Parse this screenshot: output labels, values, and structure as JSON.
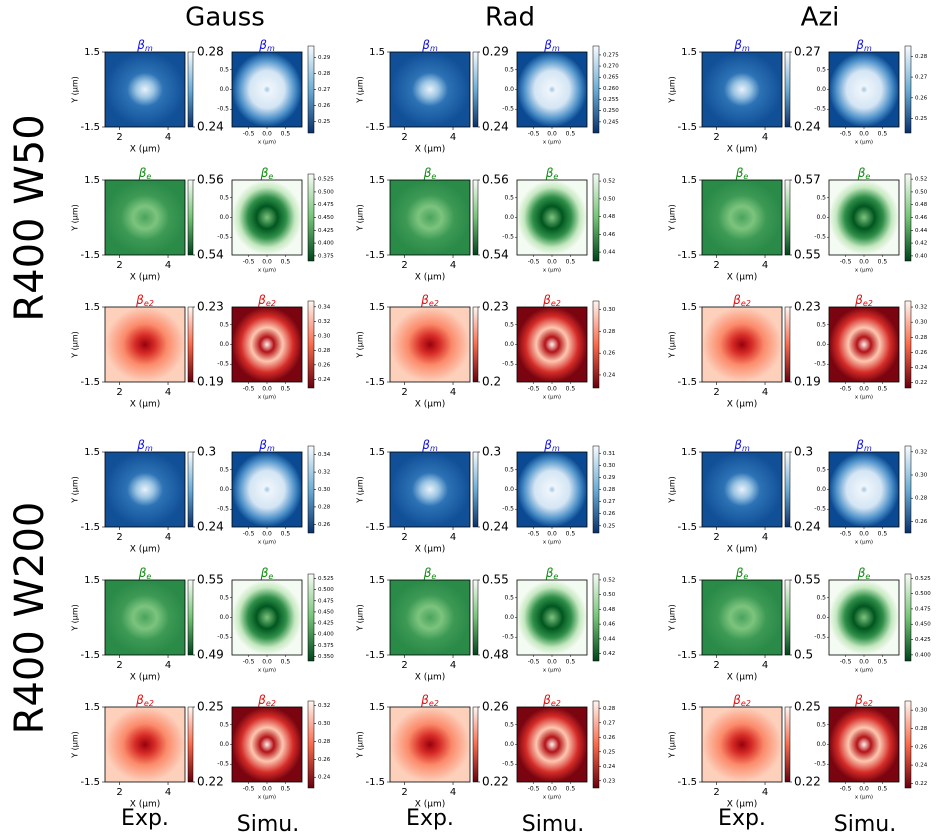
{
  "columns": [
    {
      "title": "Gauss",
      "exp_label": "Exp.",
      "simu_label": "Simu."
    },
    {
      "title": "Rad",
      "exp_label": "Exp.",
      "simu_label": "Simu."
    },
    {
      "title": "Azi",
      "exp_label": "Exp.",
      "simu_label": "Simu."
    }
  ],
  "exp_axes": {
    "xlabel": "X (µm)",
    "ylabel": "Y (µm)",
    "xlim": [
      1.4,
      4.7
    ],
    "xticks": [
      2,
      4
    ],
    "ylim": [
      -1.5,
      1.5
    ],
    "yticks": [
      1.5,
      -1.5
    ]
  },
  "simu_axes": {
    "xlabel": "x (µm)",
    "xlim": [
      -0.95,
      0.95
    ],
    "xticks": [
      -0.5,
      {
        "value": 0,
        "label": "0.0"
      },
      0.5
    ],
    "ylim": [
      -0.95,
      0.95
    ],
    "yticks": [
      0.5,
      {
        "value": 0,
        "label": "0.0"
      },
      -0.5
    ]
  },
  "rows": [
    {
      "symbol": "β",
      "sub": "m",
      "color": "#1010e0"
    },
    {
      "symbol": "β",
      "sub": "e",
      "color": "#108a10"
    },
    {
      "symbol": "β",
      "sub": "e2",
      "color": "#e01010"
    }
  ],
  "groups": [
    {
      "label": "R400 W50",
      "cells": [
        [
          {
            "exp": {
              "clim": [
                0.24,
                0.28
              ],
              "cticks": [
                0.28,
                0.24
              ]
            },
            "simu": {
              "clim": [
                0.243,
                0.297
              ],
              "cticks": [
                0.25,
                0.26,
                0.27,
                0.28,
                0.29
              ]
            }
          },
          {
            "exp": {
              "clim": [
                0.54,
                0.56
              ],
              "cticks": [
                0.56,
                0.54
              ]
            },
            "simu": {
              "clim": [
                0.365,
                0.535
              ],
              "cticks": [
                0.375,
                {
                  "value": 0.4,
                  "label": "0.400"
                },
                0.425,
                {
                  "value": 0.45,
                  "label": "0.450"
                },
                0.475,
                {
                  "value": 0.5,
                  "label": "0.500"
                },
                0.525
              ]
            }
          },
          {
            "exp": {
              "clim": [
                0.19,
                0.23
              ],
              "cticks": [
                0.23,
                0.19
              ]
            },
            "simu": {
              "clim": [
                0.228,
                0.348
              ],
              "cticks": [
                0.24,
                0.26,
                0.28,
                {
                  "value": 0.3,
                  "label": "0.30"
                },
                0.32,
                0.34
              ]
            }
          }
        ],
        [
          {
            "exp": {
              "clim": [
                0.24,
                0.29
              ],
              "cticks": [
                0.29,
                0.24
              ]
            },
            "simu": {
              "clim": [
                0.24,
                0.279
              ],
              "cticks": [
                0.245,
                {
                  "value": 0.25,
                  "label": "0.250"
                },
                0.255,
                {
                  "value": 0.26,
                  "label": "0.260"
                },
                0.265,
                {
                  "value": 0.27,
                  "label": "0.270"
                },
                0.275
              ]
            }
          },
          {
            "exp": {
              "clim": [
                0.54,
                0.56
              ],
              "cticks": [
                0.56,
                0.54
              ]
            },
            "simu": {
              "clim": [
                0.43,
                0.528
              ],
              "cticks": [
                0.44,
                0.46,
                0.48,
                {
                  "value": 0.5,
                  "label": "0.50"
                },
                0.52
              ]
            }
          },
          {
            "exp": {
              "clim": [
                0.2,
                0.23
              ],
              "cticks": [
                0.23,
                0.2
              ]
            },
            "simu": {
              "clim": [
                0.228,
                0.308
              ],
              "cticks": [
                0.24,
                0.26,
                0.28,
                {
                  "value": 0.3,
                  "label": "0.30"
                }
              ]
            }
          }
        ],
        [
          {
            "exp": {
              "clim": [
                0.24,
                0.27
              ],
              "cticks": [
                0.27,
                0.24
              ]
            },
            "simu": {
              "clim": [
                0.243,
                0.285
              ],
              "cticks": [
                0.25,
                0.26,
                0.27,
                0.28
              ]
            }
          },
          {
            "exp": {
              "clim": [
                0.55,
                0.57
              ],
              "cticks": [
                0.57,
                0.55
              ]
            },
            "simu": {
              "clim": [
                0.392,
                0.528
              ],
              "cticks": [
                {
                  "value": 0.4,
                  "label": "0.40"
                },
                0.42,
                0.44,
                0.46,
                0.48,
                {
                  "value": 0.5,
                  "label": "0.50"
                },
                0.52
              ]
            }
          },
          {
            "exp": {
              "clim": [
                0.19,
                0.23
              ],
              "cticks": [
                0.23,
                0.19
              ]
            },
            "simu": {
              "clim": [
                0.213,
                0.328
              ],
              "cticks": [
                0.22,
                0.24,
                0.26,
                0.28,
                {
                  "value": 0.3,
                  "label": "0.30"
                },
                0.32
              ]
            }
          }
        ]
      ]
    },
    {
      "label": "R400 W200",
      "cells": [
        [
          {
            "exp": {
              "clim": [
                0.24,
                0.3
              ],
              "cticks": [
                0.3,
                0.24
              ]
            },
            "simu": {
              "clim": [
                0.25,
                0.35
              ],
              "cticks": [
                0.26,
                0.28,
                {
                  "value": 0.3,
                  "label": "0.30"
                },
                0.32,
                0.34
              ]
            }
          },
          {
            "exp": {
              "clim": [
                0.49,
                0.55
              ],
              "cticks": [
                0.55,
                0.49
              ]
            },
            "simu": {
              "clim": [
                0.34,
                0.535
              ],
              "cticks": [
                {
                  "value": 0.35,
                  "label": "0.350"
                },
                0.375,
                {
                  "value": 0.4,
                  "label": "0.400"
                },
                0.425,
                {
                  "value": 0.45,
                  "label": "0.450"
                },
                0.475,
                {
                  "value": 0.5,
                  "label": "0.500"
                },
                0.525
              ]
            }
          },
          {
            "exp": {
              "clim": [
                0.22,
                0.25
              ],
              "cticks": [
                0.25,
                0.22
              ]
            },
            "simu": {
              "clim": [
                0.228,
                0.325
              ],
              "cticks": [
                0.24,
                0.26,
                0.28,
                {
                  "value": 0.3,
                  "label": "0.30"
                },
                0.32
              ]
            }
          }
        ],
        [
          {
            "exp": {
              "clim": [
                0.24,
                0.3
              ],
              "cticks": [
                0.3,
                0.24
              ]
            },
            "simu": {
              "clim": [
                0.244,
                0.316
              ],
              "cticks": [
                0.25,
                0.26,
                0.27,
                0.28,
                0.29,
                {
                  "value": 0.3,
                  "label": "0.30"
                },
                0.31
              ]
            }
          },
          {
            "exp": {
              "clim": [
                0.48,
                0.55
              ],
              "cticks": [
                0.55,
                0.48
              ]
            },
            "simu": {
              "clim": [
                0.41,
                0.528
              ],
              "cticks": [
                0.42,
                0.44,
                0.46,
                0.48,
                {
                  "value": 0.5,
                  "label": "0.50"
                },
                0.52
              ]
            }
          },
          {
            "exp": {
              "clim": [
                0.22,
                0.26
              ],
              "cticks": [
                0.26,
                0.22
              ]
            },
            "simu": {
              "clim": [
                0.225,
                0.285
              ],
              "cticks": [
                0.23,
                0.24,
                0.25,
                0.26,
                0.27,
                0.28
              ]
            }
          }
        ],
        [
          {
            "exp": {
              "clim": [
                0.24,
                0.3
              ],
              "cticks": [
                0.3,
                0.24
              ]
            },
            "simu": {
              "clim": [
                0.25,
                0.325
              ],
              "cticks": [
                0.26,
                0.28,
                {
                  "value": 0.3,
                  "label": "0.30"
                },
                0.32
              ]
            }
          },
          {
            "exp": {
              "clim": [
                0.5,
                0.55
              ],
              "cticks": [
                0.55,
                0.5
              ]
            },
            "simu": {
              "clim": [
                0.39,
                0.532
              ],
              "cticks": [
                {
                  "value": 0.4,
                  "label": "0.400"
                },
                0.425,
                {
                  "value": 0.45,
                  "label": "0.450"
                },
                0.475,
                {
                  "value": 0.5,
                  "label": "0.500"
                },
                0.525
              ]
            }
          },
          {
            "exp": {
              "clim": [
                0.22,
                0.25
              ],
              "cticks": [
                0.25,
                0.22
              ]
            },
            "simu": {
              "clim": [
                0.215,
                0.31
              ],
              "cticks": [
                0.22,
                0.24,
                0.26,
                0.28,
                {
                  "value": 0.3,
                  "label": "0.30"
                }
              ]
            }
          }
        ]
      ]
    }
  ]
}
